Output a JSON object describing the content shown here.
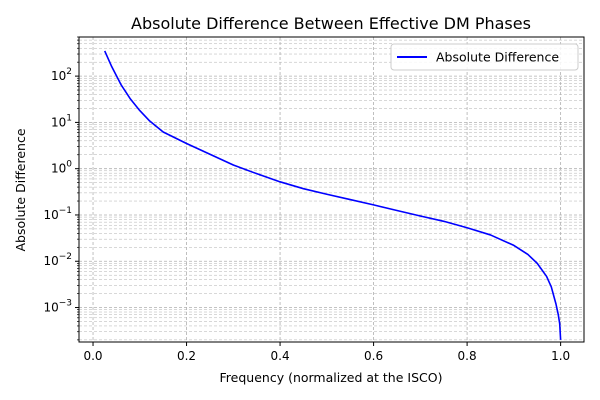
{
  "chart_data": {
    "type": "line",
    "title": "Absolute Difference Between Effective DM Phases",
    "xlabel": "Frequency (normalized at the ISCO)",
    "ylabel": "Absolute Difference",
    "xlim": [
      -0.03,
      1.05
    ],
    "ylim": [
      0.00018,
      700
    ],
    "yscale": "log",
    "grid": true,
    "legend_position": "top-right",
    "x_ticks": [
      "0.0",
      "0.2",
      "0.4",
      "0.6",
      "0.8",
      "1.0"
    ],
    "x_tick_values": [
      0.0,
      0.2,
      0.4,
      0.6,
      0.8,
      1.0
    ],
    "y_tick_values": [
      0.001,
      0.01,
      0.1,
      1,
      10,
      100
    ],
    "y_ticks": [
      {
        "base": "10",
        "exp": "−3"
      },
      {
        "base": "10",
        "exp": "−2"
      },
      {
        "base": "10",
        "exp": "−1"
      },
      {
        "base": "10",
        "exp": "0"
      },
      {
        "base": "10",
        "exp": "1"
      },
      {
        "base": "10",
        "exp": "2"
      }
    ],
    "series": [
      {
        "name": "Absolute Difference",
        "color": "#0000ff",
        "x": [
          0.025,
          0.04,
          0.06,
          0.08,
          0.1,
          0.12,
          0.15,
          0.2,
          0.25,
          0.3,
          0.35,
          0.4,
          0.45,
          0.5,
          0.55,
          0.6,
          0.65,
          0.7,
          0.75,
          0.8,
          0.85,
          0.9,
          0.93,
          0.95,
          0.97,
          0.98,
          0.99,
          0.995,
          0.998,
          1.0
        ],
        "y": [
          350,
          160,
          65,
          32,
          18,
          11,
          6.2,
          3.5,
          2.05,
          1.2,
          0.78,
          0.52,
          0.37,
          0.28,
          0.215,
          0.165,
          0.125,
          0.095,
          0.073,
          0.053,
          0.037,
          0.022,
          0.014,
          0.009,
          0.0047,
          0.0028,
          0.0012,
          0.0007,
          0.00045,
          0.0002
        ]
      }
    ]
  }
}
